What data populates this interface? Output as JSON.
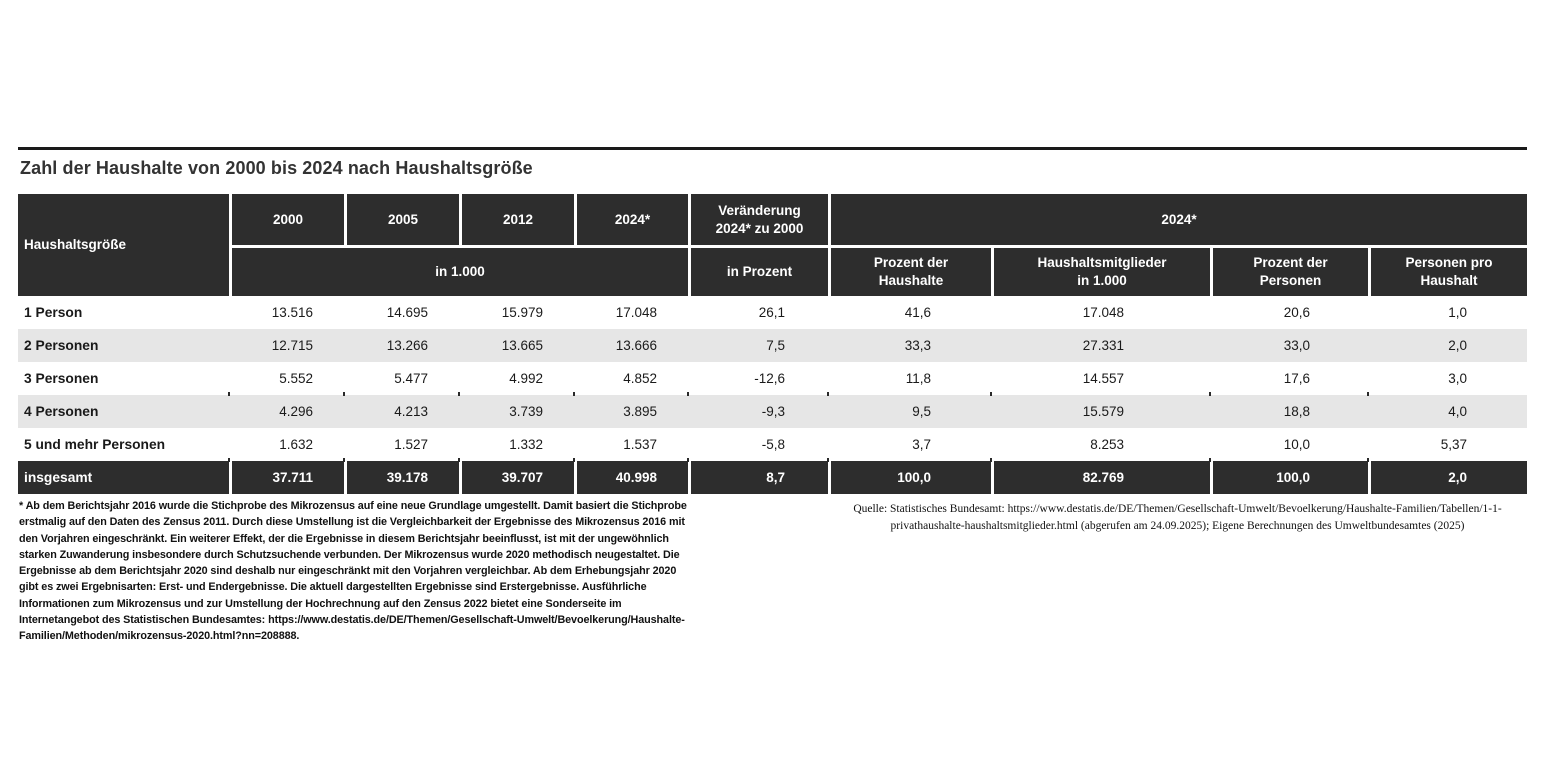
{
  "title": "Zahl der Haushalte von 2000 bis 2024 nach Haushaltsgröße",
  "table": {
    "corner_label": "Haushaltsgröße",
    "years": [
      "2000",
      "2005",
      "2012",
      "2024*"
    ],
    "years_unit": "in 1.000",
    "change_header_line1": "Veränderung",
    "change_header_line2": "2024* zu 2000",
    "change_unit": "in Prozent",
    "group_2024_label": "2024*",
    "sub_headers": [
      {
        "line1": "Prozent der",
        "line2": "Haushalte"
      },
      {
        "line1": "Haushaltsmitglieder",
        "line2": "in 1.000"
      },
      {
        "line1": "Prozent der",
        "line2": "Personen"
      },
      {
        "line1": "Personen pro",
        "line2": "Haushalt"
      }
    ]
  },
  "chart_data": {
    "type": "table",
    "title": "Zahl der Haushalte von 2000 bis 2024 nach Haushaltsgröße",
    "columns": [
      "Haushaltsgröße",
      "2000 in 1.000",
      "2005 in 1.000",
      "2012 in 1.000",
      "2024* in 1.000",
      "Veränderung 2024* zu 2000 in Prozent",
      "2024* Prozent der Haushalte",
      "2024* Haushaltsmitglieder in 1.000",
      "2024* Prozent der Personen",
      "2024* Personen pro Haushalt"
    ],
    "rows": [
      [
        "1 Person",
        "13.516",
        "14.695",
        "15.979",
        "17.048",
        "26,1",
        "41,6",
        "17.048",
        "20,6",
        "1,0"
      ],
      [
        "2 Personen",
        "12.715",
        "13.266",
        "13.665",
        "13.666",
        "7,5",
        "33,3",
        "27.331",
        "33,0",
        "2,0"
      ],
      [
        "3 Personen",
        "5.552",
        "5.477",
        "4.992",
        "4.852",
        "-12,6",
        "11,8",
        "14.557",
        "17,6",
        "3,0"
      ],
      [
        "4 Personen",
        "4.296",
        "4.213",
        "3.739",
        "3.895",
        "-9,3",
        "9,5",
        "15.579",
        "18,8",
        "4,0"
      ],
      [
        "5 und mehr Personen",
        "1.632",
        "1.527",
        "1.332",
        "1.537",
        "-5,8",
        "3,7",
        "8.253",
        "10,0",
        "5,37"
      ],
      [
        "insgesamt",
        "37.711",
        "39.178",
        "39.707",
        "40.998",
        "8,7",
        "100,0",
        "82.769",
        "100,0",
        "2,0"
      ]
    ]
  },
  "footnote": "* Ab dem Berichtsjahr 2016 wurde die Stichprobe des Mikrozensus auf eine neue Grundlage umgestellt. Damit basiert die Stichprobe erstmalig auf den Daten des Zensus 2011. Durch diese Umstellung ist die Vergleichbarkeit der Ergebnisse des Mikrozensus 2016 mit den Vorjahren eingeschränkt. Ein weiterer Effekt, der die Ergebnisse in diesem Berichtsjahr beeinflusst, ist mit der ungewöhnlich starken Zuwanderung insbesondere durch Schutzsuchende verbunden. Der Mikrozensus wurde 2020 methodisch neugestaltet. Die Ergebnisse ab dem Berichtsjahr 2020 sind deshalb nur eingeschränkt mit den Vorjahren vergleichbar. Ab dem Erhebungsjahr 2020 gibt es zwei Ergebnisarten: Erst- und Endergebnisse. Die aktuell dargestellten Ergebnisse sind Erstergebnisse. Ausführliche Informationen zum Mikrozensus und zur Umstellung der Hochrechnung auf den Zensus 2022 bietet eine Sonderseite im Internetangebot des Statistischen Bundesamtes: https://www.destatis.de/DE/Themen/Gesellschaft-Umwelt/Bevoelkerung/Haushalte-Familien/Methoden/mikrozensus-2020.html?nn=208888.",
  "source": {
    "line1": "Quelle: Statistisches Bundesamt: https://www.destatis.de/DE/Themen/Gesellschaft-Umwelt/Bevoelkerung/Haushalte-Familien/Tabellen/1-1-",
    "line2": "privathaushalte-haushaltsmitglieder.html (abgerufen am 24.09.2025); Eigene Berechnungen des Umweltbundesamtes (2025)"
  },
  "colors": {
    "header_bg": "#2d2d2d",
    "total_bg": "#2d2d2d",
    "stripe_bg": "#e6e6e6",
    "text": "#1a1a1a",
    "rule": "#1a1a1a"
  }
}
